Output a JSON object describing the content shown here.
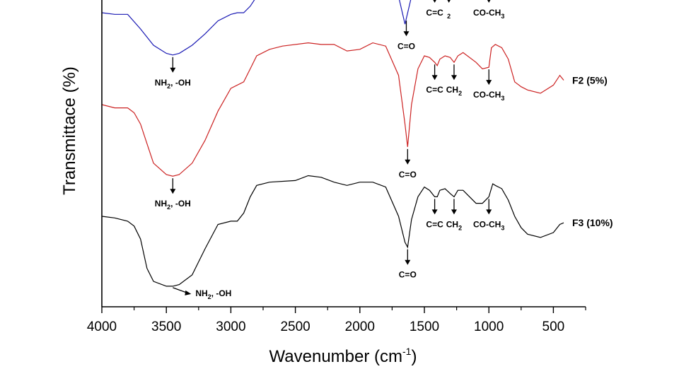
{
  "chart_data": {
    "type": "line",
    "title": "",
    "xlabel": "Wavenumber (cm",
    "xlabel_sup": "-1",
    "xlabel_end": ")",
    "ylabel": "Transmittace (%)",
    "xlim": [
      4000,
      250
    ],
    "x_ticks": [
      "4000",
      "3500",
      "3000",
      "2500",
      "2000",
      "1500",
      "1000",
      "500"
    ],
    "x_tick_values": [
      4000,
      3500,
      3000,
      2500,
      2000,
      1500,
      1000,
      500
    ],
    "grid": false,
    "y_ticks_shown": false,
    "series": [
      {
        "name": "",
        "color": "#1a1ab4",
        "points": [
          [
            4000,
            -0.9
          ],
          [
            3900,
            -0.95
          ],
          [
            3800,
            -0.95
          ],
          [
            3700,
            -1.4
          ],
          [
            3600,
            -1.9
          ],
          [
            3500,
            -2.15
          ],
          [
            3450,
            -2.2
          ],
          [
            3400,
            -2.15
          ],
          [
            3300,
            -1.9
          ],
          [
            3200,
            -1.55
          ],
          [
            3100,
            -1.15
          ],
          [
            3000,
            -0.95
          ],
          [
            2950,
            -0.9
          ],
          [
            2900,
            -0.9
          ],
          [
            2850,
            -0.7
          ],
          [
            2800,
            -0.4
          ],
          [
            2700,
            0.2
          ],
          [
            2600,
            0.5
          ],
          [
            2400,
            0.6
          ],
          [
            2200,
            0.6
          ],
          [
            2000,
            0.6
          ],
          [
            1900,
            0.6
          ],
          [
            1800,
            0.3
          ],
          [
            1700,
            -0.4
          ],
          [
            1650,
            -1.25
          ],
          [
            1600,
            -0.4
          ],
          [
            1550,
            -0.1
          ],
          [
            1500,
            -0.05
          ]
        ],
        "annotations": [
          {
            "text": "NH",
            "sub": "2",
            "tail": ", -OH",
            "x": 3450
          },
          {
            "text": "C=O",
            "sub": "",
            "tail": "",
            "x": 1640
          },
          {
            "text": "C=C",
            "sub": "",
            "tail": "",
            "x": 1420
          },
          {
            "text": "",
            "sub": "2",
            "tail": "",
            "x": 1310
          },
          {
            "text": "CO-CH",
            "sub": "3",
            "tail": "",
            "x": 1000
          }
        ]
      },
      {
        "name": "F2 (5%)",
        "color": "#cc2222",
        "points": [
          [
            4000,
            -2.9
          ],
          [
            3900,
            -3.0
          ],
          [
            3800,
            -3.0
          ],
          [
            3750,
            -3.15
          ],
          [
            3700,
            -3.5
          ],
          [
            3650,
            -4.1
          ],
          [
            3600,
            -4.7
          ],
          [
            3500,
            -5.05
          ],
          [
            3450,
            -5.1
          ],
          [
            3400,
            -5.05
          ],
          [
            3300,
            -4.7
          ],
          [
            3200,
            -4.0
          ],
          [
            3100,
            -3.1
          ],
          [
            3000,
            -2.4
          ],
          [
            2900,
            -2.2
          ],
          [
            2850,
            -1.8
          ],
          [
            2800,
            -1.4
          ],
          [
            2700,
            -1.2
          ],
          [
            2600,
            -1.1
          ],
          [
            2400,
            -1.0
          ],
          [
            2300,
            -1.05
          ],
          [
            2200,
            -1.05
          ],
          [
            2100,
            -1.25
          ],
          [
            2000,
            -1.2
          ],
          [
            1900,
            -1.0
          ],
          [
            1800,
            -1.1
          ],
          [
            1700,
            -2.0
          ],
          [
            1650,
            -3.5
          ],
          [
            1630,
            -4.2
          ],
          [
            1600,
            -2.9
          ],
          [
            1550,
            -1.8
          ],
          [
            1500,
            -1.4
          ],
          [
            1460,
            -1.45
          ],
          [
            1420,
            -1.6
          ],
          [
            1400,
            -1.7
          ],
          [
            1380,
            -1.5
          ],
          [
            1340,
            -1.4
          ],
          [
            1300,
            -1.45
          ],
          [
            1270,
            -1.6
          ],
          [
            1240,
            -1.4
          ],
          [
            1200,
            -1.3
          ],
          [
            1100,
            -1.6
          ],
          [
            1050,
            -1.8
          ],
          [
            1000,
            -1.75
          ],
          [
            980,
            -1.15
          ],
          [
            950,
            -1.05
          ],
          [
            900,
            -1.15
          ],
          [
            850,
            -1.5
          ],
          [
            800,
            -2.2
          ],
          [
            750,
            -2.35
          ],
          [
            700,
            -2.45
          ],
          [
            600,
            -2.55
          ],
          [
            500,
            -2.3
          ],
          [
            450,
            -2.0
          ],
          [
            420,
            -2.15
          ]
        ],
        "annotations": [
          {
            "text": "NH",
            "sub": "2",
            "tail": ", -OH",
            "x": 3450
          },
          {
            "text": "C=O",
            "sub": "",
            "tail": "",
            "x": 1630
          },
          {
            "text": "C=C",
            "sub": "",
            "tail": "",
            "x": 1420
          },
          {
            "text": "CH",
            "sub": "2",
            "tail": "",
            "x": 1270
          },
          {
            "text": "CO-CH",
            "sub": "3",
            "tail": "",
            "x": 1000
          }
        ]
      },
      {
        "name": "F3 (10%)",
        "color": "#000000",
        "points": [
          [
            4000,
            -4.8
          ],
          [
            3900,
            -4.85
          ],
          [
            3800,
            -4.95
          ],
          [
            3750,
            -5.1
          ],
          [
            3700,
            -5.5
          ],
          [
            3650,
            -6.4
          ],
          [
            3600,
            -6.8
          ],
          [
            3500,
            -6.95
          ],
          [
            3450,
            -6.95
          ],
          [
            3400,
            -6.9
          ],
          [
            3300,
            -6.6
          ],
          [
            3200,
            -5.8
          ],
          [
            3100,
            -5.05
          ],
          [
            3000,
            -4.95
          ],
          [
            2950,
            -4.95
          ],
          [
            2900,
            -4.7
          ],
          [
            2850,
            -4.2
          ],
          [
            2800,
            -3.85
          ],
          [
            2700,
            -3.75
          ],
          [
            2500,
            -3.7
          ],
          [
            2400,
            -3.55
          ],
          [
            2300,
            -3.6
          ],
          [
            2200,
            -3.75
          ],
          [
            2100,
            -3.85
          ],
          [
            2000,
            -3.75
          ],
          [
            1900,
            -3.75
          ],
          [
            1800,
            -3.9
          ],
          [
            1700,
            -4.8
          ],
          [
            1650,
            -5.6
          ],
          [
            1630,
            -5.75
          ],
          [
            1600,
            -4.9
          ],
          [
            1550,
            -4.2
          ],
          [
            1500,
            -3.9
          ],
          [
            1460,
            -4.0
          ],
          [
            1420,
            -4.2
          ],
          [
            1400,
            -4.2
          ],
          [
            1380,
            -4.0
          ],
          [
            1340,
            -3.95
          ],
          [
            1300,
            -4.1
          ],
          [
            1270,
            -4.2
          ],
          [
            1240,
            -4.0
          ],
          [
            1200,
            -4.0
          ],
          [
            1100,
            -4.4
          ],
          [
            1050,
            -4.4
          ],
          [
            1000,
            -4.2
          ],
          [
            970,
            -3.8
          ],
          [
            950,
            -3.85
          ],
          [
            900,
            -3.95
          ],
          [
            850,
            -4.3
          ],
          [
            800,
            -4.8
          ],
          [
            750,
            -5.15
          ],
          [
            700,
            -5.35
          ],
          [
            600,
            -5.45
          ],
          [
            500,
            -5.3
          ],
          [
            450,
            -5.05
          ],
          [
            420,
            -5.0
          ]
        ],
        "annotations": [
          {
            "text": "NH",
            "sub": "2",
            "tail": ", -OH",
            "x": 3450
          },
          {
            "text": "C=O",
            "sub": "",
            "tail": "",
            "x": 1630
          },
          {
            "text": "C=C",
            "sub": "",
            "tail": "",
            "x": 1420
          },
          {
            "text": "CH",
            "sub": "2",
            "tail": "",
            "x": 1270
          },
          {
            "text": "CO-CH",
            "sub": "3",
            "tail": "",
            "x": 1000
          }
        ]
      }
    ]
  }
}
